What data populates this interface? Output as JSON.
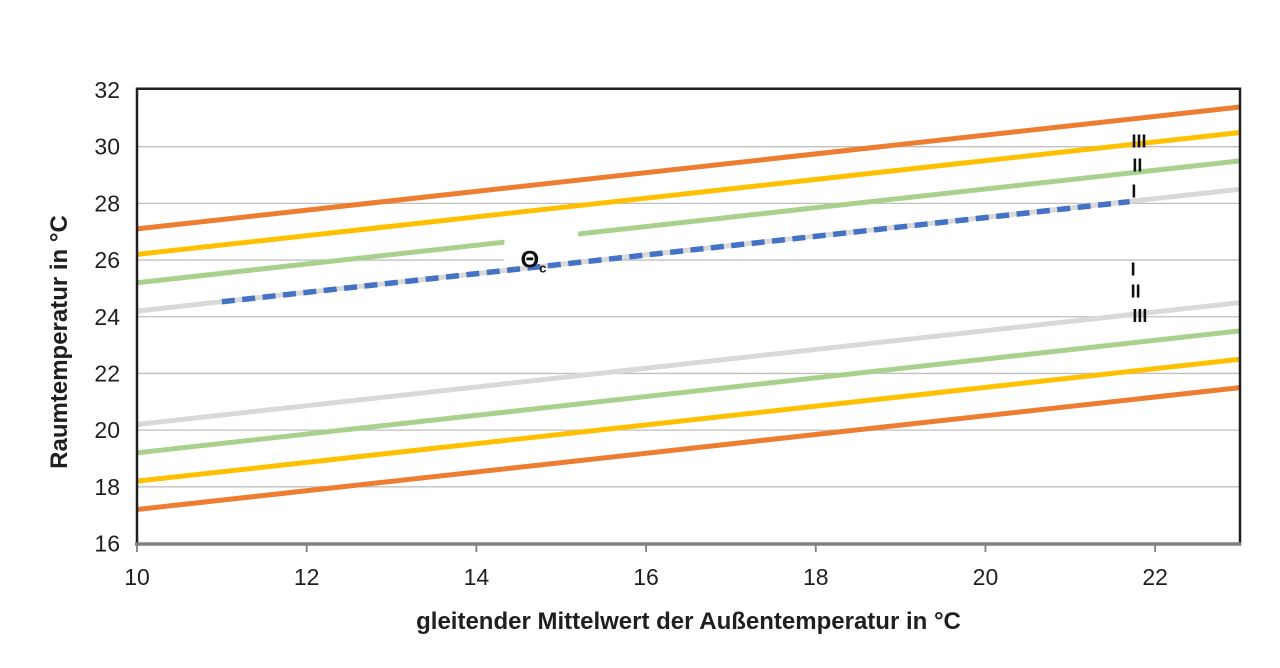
{
  "chart": {
    "title": "",
    "y_axis_title": "Raumtemperatur in °C",
    "x_axis_title": "gleitender Mittelwert der Außentemperatur in °C"
  },
  "chart_data": {
    "type": "line",
    "title": "",
    "xlabel": "gleitender Mittelwert der Außentemperatur in °C",
    "ylabel": "Raumtemperatur in °C",
    "xlim": [
      10,
      23
    ],
    "ylim": [
      16,
      32
    ],
    "x_tick_values": [
      10,
      12,
      14,
      16,
      18,
      20,
      22
    ],
    "x_tick_labels": [
      "10",
      "12",
      "14",
      "16",
      "18",
      "20",
      "22"
    ],
    "y_tick_values": [
      16,
      18,
      20,
      22,
      24,
      26,
      28,
      30,
      32
    ],
    "y_tick_labels": [
      "16",
      "18",
      "20",
      "22",
      "24",
      "26",
      "28",
      "30",
      "32"
    ],
    "grid": "horizontal-only",
    "legend_position": "none",
    "series": [
      {
        "name": "upper-limit-orange",
        "color": "#ED7D31",
        "style": "solid",
        "width": 5,
        "layer": 1,
        "points": [
          [
            10,
            27.1
          ],
          [
            23,
            31.4
          ]
        ]
      },
      {
        "name": "upper-limit-yellow-III",
        "color": "#FFC000",
        "style": "solid",
        "width": 5,
        "layer": 1,
        "points": [
          [
            10,
            26.2
          ],
          [
            23,
            30.5
          ]
        ]
      },
      {
        "name": "upper-limit-green-II",
        "color": "#A9D18E",
        "style": "solid",
        "width": 5,
        "layer": 0,
        "points": [
          [
            10,
            25.2
          ],
          [
            23,
            29.5
          ]
        ]
      },
      {
        "name": "upper-limit-gray-I",
        "color": "#D9D9D9",
        "style": "solid",
        "width": 5,
        "layer": 1,
        "points": [
          [
            10,
            24.2
          ],
          [
            23,
            28.5
          ]
        ]
      },
      {
        "name": "comfort-temperature-theta-c",
        "color": "#4472C4",
        "style": "dashed",
        "width": 5.5,
        "layer": 2,
        "points": [
          [
            11,
            24.53
          ],
          [
            21.7,
            28.06
          ]
        ]
      },
      {
        "name": "lower-limit-gray-I",
        "color": "#D9D9D9",
        "style": "solid",
        "width": 5,
        "layer": 1,
        "points": [
          [
            10,
            20.2
          ],
          [
            23,
            24.5
          ]
        ]
      },
      {
        "name": "lower-limit-green-II",
        "color": "#A9D18E",
        "style": "solid",
        "width": 5,
        "layer": 1,
        "points": [
          [
            10,
            19.2
          ],
          [
            23,
            23.5
          ]
        ]
      },
      {
        "name": "lower-limit-yellow-III",
        "color": "#FFC000",
        "style": "solid",
        "width": 5,
        "layer": 1,
        "points": [
          [
            10,
            18.2
          ],
          [
            23,
            22.5
          ]
        ]
      },
      {
        "name": "lower-limit-orange",
        "color": "#ED7D31",
        "style": "solid",
        "width": 5,
        "layer": 1,
        "points": [
          [
            10,
            17.2
          ],
          [
            23,
            21.5
          ]
        ]
      }
    ],
    "annotations": {
      "line_label": {
        "text": "Θ",
        "subscript": "c",
        "x": 14.52,
        "y": 25.73,
        "box": {
          "x1": 14.33,
          "x2": 15.2,
          "y1": 25.92,
          "y2": 27.15
        }
      },
      "category_labels": [
        {
          "text": "III",
          "x": 21.81,
          "y": 30.2
        },
        {
          "text": "II",
          "x": 21.79,
          "y": 29.35
        },
        {
          "text": "I",
          "x": 21.75,
          "y": 28.43
        },
        {
          "text": "I",
          "x": 21.74,
          "y": 25.68
        },
        {
          "text": "II",
          "x": 21.77,
          "y": 24.9
        },
        {
          "text": "III",
          "x": 21.82,
          "y": 24.05
        }
      ]
    },
    "colors": {
      "orange": "#ED7D31",
      "yellow": "#FFC000",
      "green": "#A9D18E",
      "gray": "#D9D9D9",
      "blue_dashed": "#4472C4",
      "gridline": "#BFBFBF",
      "axis_frame": "#1F1F1F",
      "bottom_axis": "#808080",
      "text": "#1F1F1F"
    }
  }
}
